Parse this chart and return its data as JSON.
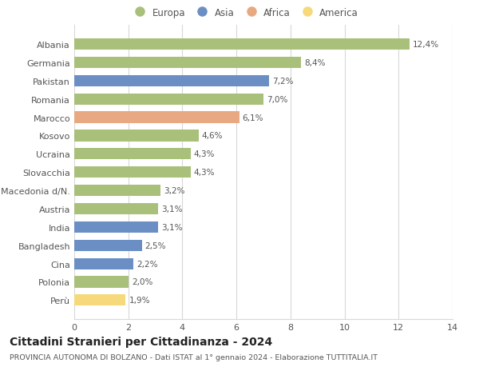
{
  "categories": [
    "Albania",
    "Germania",
    "Pakistan",
    "Romania",
    "Marocco",
    "Kosovo",
    "Ucraina",
    "Slovacchia",
    "Macedonia d/N.",
    "Austria",
    "India",
    "Bangladesh",
    "Cina",
    "Polonia",
    "Perù"
  ],
  "values": [
    12.4,
    8.4,
    7.2,
    7.0,
    6.1,
    4.6,
    4.3,
    4.3,
    3.2,
    3.1,
    3.1,
    2.5,
    2.2,
    2.0,
    1.9
  ],
  "labels": [
    "12,4%",
    "8,4%",
    "7,2%",
    "7,0%",
    "6,1%",
    "4,6%",
    "4,3%",
    "4,3%",
    "3,2%",
    "3,1%",
    "3,1%",
    "2,5%",
    "2,2%",
    "2,0%",
    "1,9%"
  ],
  "colors": [
    "#a8c07a",
    "#a8c07a",
    "#6b8fc4",
    "#a8c07a",
    "#e8a882",
    "#a8c07a",
    "#a8c07a",
    "#a8c07a",
    "#a8c07a",
    "#a8c07a",
    "#6b8fc4",
    "#6b8fc4",
    "#6b8fc4",
    "#a8c07a",
    "#f5d97a"
  ],
  "legend_labels": [
    "Europa",
    "Asia",
    "Africa",
    "America"
  ],
  "legend_colors": [
    "#a8c07a",
    "#6b8fc4",
    "#e8a882",
    "#f5d97a"
  ],
  "xlim": [
    0,
    14
  ],
  "xticks": [
    0,
    2,
    4,
    6,
    8,
    10,
    12,
    14
  ],
  "title": "Cittadini Stranieri per Cittadinanza - 2024",
  "subtitle": "PROVINCIA AUTONOMA DI BOLZANO - Dati ISTAT al 1° gennaio 2024 - Elaborazione TUTTITALIA.IT",
  "bg_color": "#ffffff",
  "grid_color": "#d8d8d8",
  "bar_height": 0.62,
  "label_fontsize": 7.5,
  "tick_label_fontsize": 8.0,
  "title_fontsize": 10.0,
  "subtitle_fontsize": 6.8,
  "legend_fontsize": 8.5
}
